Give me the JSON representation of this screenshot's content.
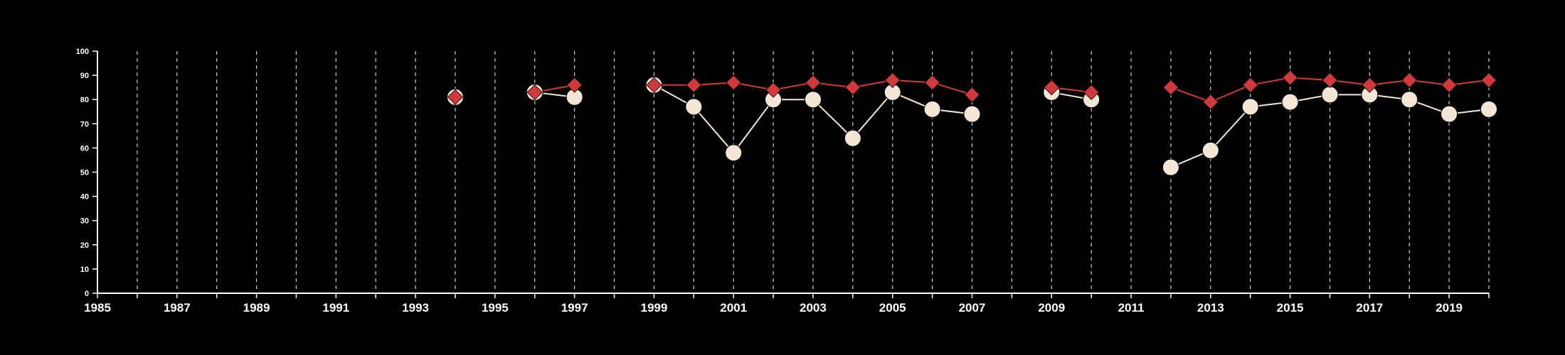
{
  "chart_data": {
    "type": "line",
    "title": "",
    "xlabel": "",
    "ylabel": "",
    "xlim": [
      1985,
      2020
    ],
    "ylim": [
      0,
      100
    ],
    "x_ticks": [
      1985,
      1987,
      1989,
      1991,
      1993,
      1995,
      1997,
      1999,
      2001,
      2003,
      2005,
      2007,
      2009,
      2011,
      2013,
      2015,
      2017,
      2019
    ],
    "y_ticks": [
      0,
      10,
      20,
      30,
      40,
      50,
      60,
      70,
      80,
      90,
      100
    ],
    "grid": "vertical dashed lines every year",
    "series": [
      {
        "color": "#F5E6D6",
        "marker": "circle",
        "segments": [
          [
            [
              1994,
              81
            ]
          ],
          [
            [
              1996,
              83
            ],
            [
              1997,
              81
            ]
          ],
          [
            [
              1999,
              86
            ],
            [
              2000,
              77
            ],
            [
              2001,
              58
            ],
            [
              2002,
              80
            ],
            [
              2003,
              80
            ],
            [
              2004,
              64
            ],
            [
              2005,
              83
            ],
            [
              2006,
              76
            ],
            [
              2007,
              74
            ]
          ],
          [
            [
              2009,
              83
            ],
            [
              2010,
              80
            ]
          ],
          [
            [
              2012,
              52
            ],
            [
              2013,
              59
            ],
            [
              2014,
              77
            ],
            [
              2015,
              79
            ],
            [
              2016,
              82
            ],
            [
              2017,
              82
            ],
            [
              2018,
              80
            ],
            [
              2019,
              74
            ],
            [
              2020,
              76
            ]
          ]
        ]
      },
      {
        "color": "#D03A3C",
        "marker": "diamond",
        "segments": [
          [
            [
              1994,
              81
            ]
          ],
          [
            [
              1996,
              83
            ],
            [
              1997,
              86
            ]
          ],
          [
            [
              1999,
              86
            ],
            [
              2000,
              86
            ],
            [
              2001,
              87
            ],
            [
              2002,
              84
            ],
            [
              2003,
              87
            ],
            [
              2004,
              85
            ],
            [
              2005,
              88
            ],
            [
              2006,
              87
            ],
            [
              2007,
              82
            ]
          ],
          [
            [
              2009,
              85
            ],
            [
              2010,
              83
            ]
          ],
          [
            [
              2012,
              85
            ],
            [
              2013,
              79
            ],
            [
              2014,
              86
            ],
            [
              2015,
              89
            ],
            [
              2016,
              88
            ],
            [
              2017,
              86
            ],
            [
              2018,
              88
            ],
            [
              2019,
              86
            ],
            [
              2020,
              88
            ]
          ]
        ]
      }
    ]
  }
}
